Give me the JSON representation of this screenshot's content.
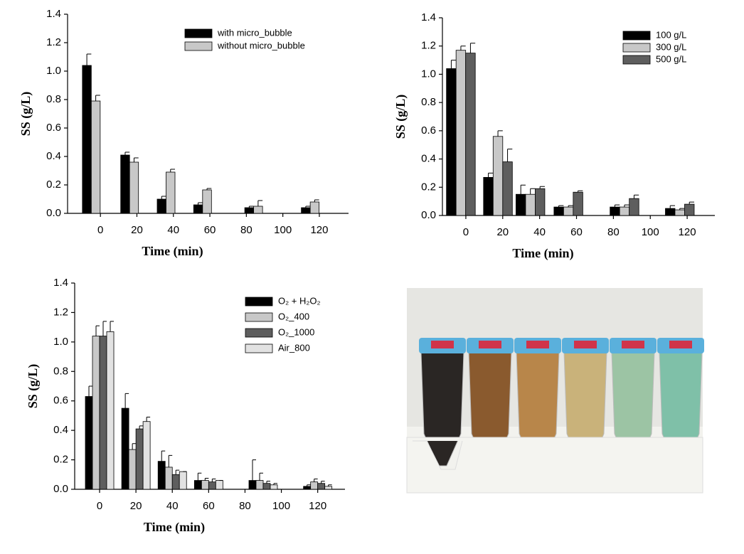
{
  "chart_data": [
    {
      "type": "bar",
      "x_label": "Time (min)",
      "y_label": "SS (g/L)",
      "x": [
        -5,
        16,
        36,
        56,
        84,
        115
      ],
      "xlim": [
        -18,
        136
      ],
      "xticks": [
        0,
        20,
        40,
        60,
        80,
        100,
        120
      ],
      "ylim": [
        0,
        1.4
      ],
      "yticks": [
        {
          "value": 0,
          "label": "0.0"
        },
        0.2,
        0.4,
        0.6,
        0.8,
        {
          "value": 1,
          "label": "1.0"
        },
        1.2,
        1.4
      ],
      "series": [
        {
          "name": "with micro_bubble",
          "color": "#000000",
          "values": [
            1.04,
            0.41,
            0.1,
            0.06,
            0.04,
            0.04
          ],
          "errors": [
            0.08,
            0.02,
            0.02,
            0.015,
            0.01,
            0.01
          ]
        },
        {
          "name": "without micro_bubble",
          "color": "#c8c8c8",
          "values": [
            0.79,
            0.36,
            0.29,
            0.165,
            0.05,
            0.08
          ],
          "errors": [
            0.04,
            0.03,
            0.02,
            0.01,
            0.04,
            0.015
          ]
        }
      ]
    },
    {
      "type": "bar",
      "x_label": "Time (min)",
      "y_label": "SS (g/L)",
      "x": [
        -2.7,
        17.4,
        35,
        55.6,
        86,
        116
      ],
      "xlim": [
        -12.7,
        135
      ],
      "xticks": [
        0,
        20,
        40,
        60,
        80,
        100,
        120
      ],
      "ylim": [
        0,
        1.4
      ],
      "yticks": [
        {
          "value": 0,
          "label": "0.0"
        },
        0.2,
        0.4,
        0.6,
        0.8,
        {
          "value": 1,
          "label": "1.0"
        },
        1.2,
        1.4
      ],
      "series": [
        {
          "name": "100 g/L",
          "color": "#000000",
          "values": [
            1.04,
            0.27,
            0.15,
            0.06,
            0.06,
            0.05
          ],
          "errors": [
            0.06,
            0.03,
            0.065,
            0.01,
            0.015,
            0.02
          ]
        },
        {
          "name": "300 g/L",
          "color": "#c8c8c8",
          "values": [
            1.17,
            0.56,
            0.15,
            0.06,
            0.06,
            0.04
          ],
          "errors": [
            0.03,
            0.04,
            0.04,
            0.01,
            0.015,
            0.01
          ]
        },
        {
          "name": "500 g/L",
          "color": "#5e5e5e",
          "values": [
            1.15,
            0.38,
            0.19,
            0.165,
            0.12,
            0.08
          ],
          "errors": [
            0.07,
            0.09,
            0.015,
            0.01,
            0.025,
            0.015
          ]
        }
      ]
    },
    {
      "type": "bar",
      "x_label": "Time (min)",
      "y_label": "SS (g/L)",
      "x": [
        0,
        20,
        40,
        60,
        90,
        120
      ],
      "xlim": [
        -13.7,
        135
      ],
      "xticks": [
        0,
        20,
        40,
        60,
        80,
        100,
        120
      ],
      "ylim": [
        0,
        1.4
      ],
      "yticks": [
        {
          "value": 0,
          "label": "0.0"
        },
        0.2,
        0.4,
        0.6,
        0.8,
        {
          "value": 1,
          "label": "1.0"
        },
        1.2,
        1.4
      ],
      "series": [
        {
          "name": "O₂ + H₂O₂",
          "color": "#000000",
          "values": [
            0.63,
            0.55,
            0.19,
            0.06,
            0.06,
            0.02
          ],
          "errors": [
            0.07,
            0.1,
            0.07,
            0.05,
            0.14,
            0.01
          ]
        },
        {
          "name": "O₂_400",
          "color": "#c8c8c8",
          "values": [
            1.04,
            0.27,
            0.15,
            0.06,
            0.06,
            0.05
          ],
          "errors": [
            0.07,
            0.04,
            0.08,
            0.015,
            0.05,
            0.02
          ]
        },
        {
          "name": "O₂_1000",
          "color": "#5e5e5e",
          "values": [
            1.04,
            0.41,
            0.1,
            0.05,
            0.04,
            0.04
          ],
          "errors": [
            0.1,
            0.02,
            0.03,
            0.02,
            0.015,
            0.015
          ]
        },
        {
          "name": "Air_800",
          "color": "#e2e2e2",
          "values": [
            1.07,
            0.46,
            0.12,
            0.06,
            0.03,
            0.02
          ],
          "errors": [
            0.07,
            0.03,
            0,
            0,
            0.01,
            0.01
          ]
        }
      ]
    }
  ]
}
